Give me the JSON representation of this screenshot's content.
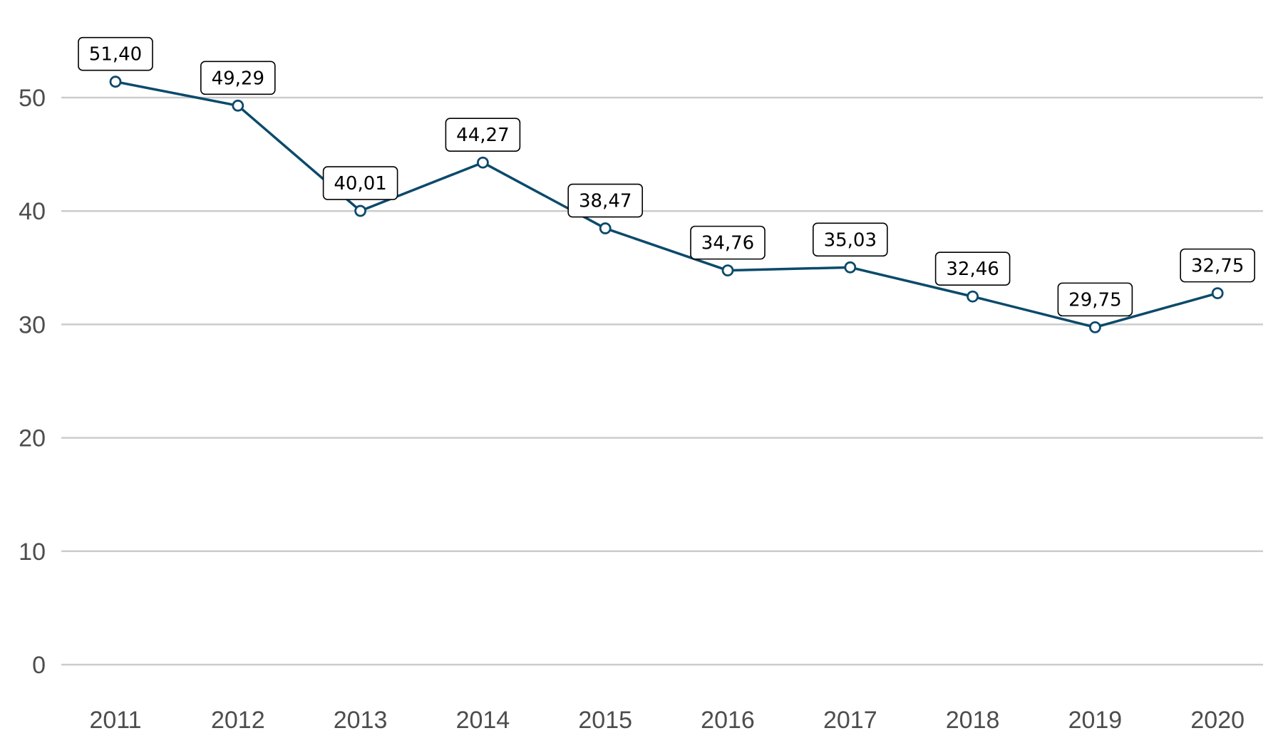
{
  "chart_data": {
    "type": "line",
    "title": "",
    "xlabel": "",
    "ylabel": "",
    "categories": [
      "2011",
      "2012",
      "2013",
      "2014",
      "2015",
      "2016",
      "2017",
      "2018",
      "2019",
      "2020"
    ],
    "series": [
      {
        "name": "",
        "values": [
          51.4,
          49.29,
          40.01,
          44.27,
          38.47,
          34.76,
          35.03,
          32.46,
          29.75,
          32.75
        ],
        "labels": [
          "51,40",
          "49,29",
          "40,01",
          "44,27",
          "38,47",
          "34,76",
          "35,03",
          "32,46",
          "29,75",
          "32,75"
        ],
        "color": "#0b4a6b"
      }
    ],
    "y_ticks": [
      0,
      10,
      20,
      30,
      40,
      50
    ],
    "y_tick_labels": [
      "0",
      "10",
      "20",
      "30",
      "40",
      "50"
    ],
    "ylim": [
      0,
      55
    ],
    "grid": true,
    "legend": "none"
  }
}
